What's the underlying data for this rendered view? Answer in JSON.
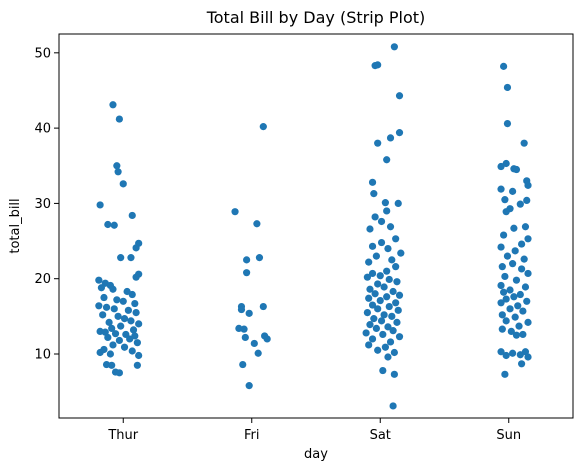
{
  "chart_data": {
    "type": "scatter",
    "title": "Total Bill by Day (Strip Plot)",
    "xlabel": "day",
    "ylabel": "total_bill",
    "categories": [
      "Thur",
      "Fri",
      "Sat",
      "Sun"
    ],
    "ylim": [
      1.5,
      52.5
    ],
    "yticks": [
      10,
      20,
      30,
      40,
      50
    ],
    "grid": false,
    "point_color": "#1f77b4",
    "series": [
      {
        "category": "Thur",
        "points": [
          {
            "offset": -0.08,
            "y": 43.1
          },
          {
            "offset": -0.03,
            "y": 41.2
          },
          {
            "offset": -0.05,
            "y": 35.0
          },
          {
            "offset": -0.04,
            "y": 34.2
          },
          {
            "offset": 0.0,
            "y": 32.6
          },
          {
            "offset": -0.18,
            "y": 29.8
          },
          {
            "offset": 0.07,
            "y": 28.4
          },
          {
            "offset": -0.12,
            "y": 27.2
          },
          {
            "offset": -0.07,
            "y": 27.1
          },
          {
            "offset": 0.12,
            "y": 24.7
          },
          {
            "offset": 0.1,
            "y": 24.1
          },
          {
            "offset": -0.02,
            "y": 22.8
          },
          {
            "offset": 0.06,
            "y": 22.8
          },
          {
            "offset": 0.12,
            "y": 20.6
          },
          {
            "offset": 0.1,
            "y": 20.2
          },
          {
            "offset": -0.19,
            "y": 19.8
          },
          {
            "offset": -0.14,
            "y": 19.4
          },
          {
            "offset": -0.1,
            "y": 19.1
          },
          {
            "offset": -0.17,
            "y": 18.8
          },
          {
            "offset": -0.08,
            "y": 18.6
          },
          {
            "offset": 0.03,
            "y": 18.3
          },
          {
            "offset": 0.07,
            "y": 17.9
          },
          {
            "offset": -0.15,
            "y": 17.5
          },
          {
            "offset": -0.05,
            "y": 17.2
          },
          {
            "offset": 0.0,
            "y": 17.0
          },
          {
            "offset": 0.09,
            "y": 16.7
          },
          {
            "offset": -0.19,
            "y": 16.4
          },
          {
            "offset": -0.13,
            "y": 16.2
          },
          {
            "offset": -0.07,
            "y": 16.0
          },
          {
            "offset": 0.04,
            "y": 15.8
          },
          {
            "offset": 0.1,
            "y": 15.5
          },
          {
            "offset": -0.16,
            "y": 15.2
          },
          {
            "offset": -0.04,
            "y": 15.0
          },
          {
            "offset": 0.01,
            "y": 14.7
          },
          {
            "offset": 0.06,
            "y": 14.4
          },
          {
            "offset": -0.11,
            "y": 14.2
          },
          {
            "offset": 0.12,
            "y": 14.0
          },
          {
            "offset": -0.02,
            "y": 13.7
          },
          {
            "offset": -0.09,
            "y": 13.4
          },
          {
            "offset": 0.08,
            "y": 13.2
          },
          {
            "offset": -0.18,
            "y": 13.0
          },
          {
            "offset": -0.14,
            "y": 12.9
          },
          {
            "offset": -0.06,
            "y": 12.7
          },
          {
            "offset": 0.02,
            "y": 12.6
          },
          {
            "offset": 0.09,
            "y": 12.4
          },
          {
            "offset": -0.12,
            "y": 12.2
          },
          {
            "offset": 0.05,
            "y": 12.0
          },
          {
            "offset": -0.03,
            "y": 11.8
          },
          {
            "offset": 0.11,
            "y": 11.5
          },
          {
            "offset": -0.08,
            "y": 11.2
          },
          {
            "offset": 0.01,
            "y": 10.9
          },
          {
            "offset": -0.15,
            "y": 10.6
          },
          {
            "offset": 0.07,
            "y": 10.4
          },
          {
            "offset": -0.18,
            "y": 10.2
          },
          {
            "offset": -0.1,
            "y": 10.0
          },
          {
            "offset": 0.12,
            "y": 9.8
          },
          {
            "offset": -0.13,
            "y": 8.6
          },
          {
            "offset": -0.09,
            "y": 8.5
          },
          {
            "offset": 0.11,
            "y": 8.5
          },
          {
            "offset": -0.06,
            "y": 7.6
          },
          {
            "offset": -0.03,
            "y": 7.5
          }
        ]
      },
      {
        "category": "Fri",
        "points": [
          {
            "offset": 0.09,
            "y": 40.2
          },
          {
            "offset": -0.13,
            "y": 28.9
          },
          {
            "offset": 0.04,
            "y": 27.3
          },
          {
            "offset": 0.06,
            "y": 22.8
          },
          {
            "offset": -0.04,
            "y": 22.5
          },
          {
            "offset": -0.04,
            "y": 20.8
          },
          {
            "offset": -0.08,
            "y": 16.3
          },
          {
            "offset": 0.09,
            "y": 16.3
          },
          {
            "offset": -0.08,
            "y": 15.9
          },
          {
            "offset": -0.02,
            "y": 15.4
          },
          {
            "offset": -0.1,
            "y": 13.4
          },
          {
            "offset": -0.06,
            "y": 13.3
          },
          {
            "offset": 0.1,
            "y": 12.4
          },
          {
            "offset": 0.12,
            "y": 12.0
          },
          {
            "offset": -0.05,
            "y": 12.2
          },
          {
            "offset": 0.02,
            "y": 11.4
          },
          {
            "offset": 0.05,
            "y": 10.1
          },
          {
            "offset": -0.07,
            "y": 8.6
          },
          {
            "offset": -0.02,
            "y": 5.8
          }
        ]
      },
      {
        "category": "Sat",
        "points": [
          {
            "offset": 0.11,
            "y": 50.8
          },
          {
            "offset": -0.04,
            "y": 48.3
          },
          {
            "offset": -0.02,
            "y": 48.4
          },
          {
            "offset": 0.15,
            "y": 44.3
          },
          {
            "offset": 0.15,
            "y": 39.4
          },
          {
            "offset": 0.08,
            "y": 38.7
          },
          {
            "offset": -0.02,
            "y": 38.0
          },
          {
            "offset": 0.05,
            "y": 35.8
          },
          {
            "offset": -0.06,
            "y": 32.8
          },
          {
            "offset": -0.05,
            "y": 31.3
          },
          {
            "offset": 0.04,
            "y": 30.1
          },
          {
            "offset": 0.14,
            "y": 30.0
          },
          {
            "offset": 0.05,
            "y": 29.0
          },
          {
            "offset": -0.04,
            "y": 28.2
          },
          {
            "offset": 0.01,
            "y": 27.6
          },
          {
            "offset": 0.08,
            "y": 26.9
          },
          {
            "offset": -0.08,
            "y": 26.6
          },
          {
            "offset": 0.12,
            "y": 25.3
          },
          {
            "offset": 0.01,
            "y": 24.8
          },
          {
            "offset": -0.06,
            "y": 24.3
          },
          {
            "offset": 0.06,
            "y": 24.0
          },
          {
            "offset": 0.16,
            "y": 23.4
          },
          {
            "offset": -0.03,
            "y": 23.0
          },
          {
            "offset": 0.09,
            "y": 22.5
          },
          {
            "offset": -0.09,
            "y": 22.2
          },
          {
            "offset": 0.12,
            "y": 21.6
          },
          {
            "offset": 0.05,
            "y": 21.0
          },
          {
            "offset": -0.06,
            "y": 20.7
          },
          {
            "offset": 0.0,
            "y": 20.4
          },
          {
            "offset": -0.1,
            "y": 20.2
          },
          {
            "offset": 0.07,
            "y": 19.9
          },
          {
            "offset": 0.13,
            "y": 19.6
          },
          {
            "offset": -0.02,
            "y": 19.3
          },
          {
            "offset": 0.03,
            "y": 18.9
          },
          {
            "offset": -0.08,
            "y": 18.6
          },
          {
            "offset": 0.1,
            "y": 18.3
          },
          {
            "offset": -0.04,
            "y": 18.0
          },
          {
            "offset": 0.15,
            "y": 17.8
          },
          {
            "offset": 0.05,
            "y": 17.6
          },
          {
            "offset": -0.09,
            "y": 17.4
          },
          {
            "offset": 0.0,
            "y": 17.1
          },
          {
            "offset": 0.12,
            "y": 16.8
          },
          {
            "offset": -0.06,
            "y": 16.5
          },
          {
            "offset": 0.07,
            "y": 16.3
          },
          {
            "offset": -0.02,
            "y": 16.0
          },
          {
            "offset": 0.14,
            "y": 15.8
          },
          {
            "offset": -0.1,
            "y": 15.5
          },
          {
            "offset": 0.03,
            "y": 15.2
          },
          {
            "offset": 0.09,
            "y": 15.0
          },
          {
            "offset": -0.05,
            "y": 14.7
          },
          {
            "offset": 0.01,
            "y": 14.4
          },
          {
            "offset": 0.13,
            "y": 14.2
          },
          {
            "offset": -0.08,
            "y": 13.9
          },
          {
            "offset": 0.06,
            "y": 13.6
          },
          {
            "offset": -0.03,
            "y": 13.4
          },
          {
            "offset": 0.1,
            "y": 13.1
          },
          {
            "offset": -0.11,
            "y": 12.8
          },
          {
            "offset": 0.02,
            "y": 12.6
          },
          {
            "offset": 0.15,
            "y": 12.3
          },
          {
            "offset": -0.06,
            "y": 12.0
          },
          {
            "offset": 0.08,
            "y": 11.6
          },
          {
            "offset": -0.09,
            "y": 11.2
          },
          {
            "offset": 0.04,
            "y": 10.9
          },
          {
            "offset": -0.02,
            "y": 10.5
          },
          {
            "offset": 0.11,
            "y": 10.2
          },
          {
            "offset": 0.06,
            "y": 9.6
          },
          {
            "offset": 0.11,
            "y": 7.3
          },
          {
            "offset": 0.02,
            "y": 7.8
          },
          {
            "offset": 0.1,
            "y": 3.1
          }
        ]
      },
      {
        "category": "Sun",
        "points": [
          {
            "offset": -0.04,
            "y": 48.2
          },
          {
            "offset": -0.01,
            "y": 45.4
          },
          {
            "offset": -0.01,
            "y": 40.6
          },
          {
            "offset": 0.12,
            "y": 38.0
          },
          {
            "offset": -0.02,
            "y": 35.3
          },
          {
            "offset": -0.06,
            "y": 34.9
          },
          {
            "offset": 0.04,
            "y": 34.6
          },
          {
            "offset": 0.06,
            "y": 34.5
          },
          {
            "offset": 0.14,
            "y": 33.0
          },
          {
            "offset": 0.15,
            "y": 32.4
          },
          {
            "offset": -0.06,
            "y": 31.9
          },
          {
            "offset": 0.03,
            "y": 31.6
          },
          {
            "offset": -0.03,
            "y": 30.5
          },
          {
            "offset": 0.14,
            "y": 30.4
          },
          {
            "offset": 0.09,
            "y": 29.9
          },
          {
            "offset": 0.01,
            "y": 29.3
          },
          {
            "offset": -0.02,
            "y": 28.9
          },
          {
            "offset": 0.13,
            "y": 26.9
          },
          {
            "offset": 0.04,
            "y": 26.7
          },
          {
            "offset": -0.04,
            "y": 25.8
          },
          {
            "offset": 0.15,
            "y": 25.3
          },
          {
            "offset": 0.1,
            "y": 24.6
          },
          {
            "offset": -0.06,
            "y": 24.2
          },
          {
            "offset": 0.05,
            "y": 23.7
          },
          {
            "offset": -0.01,
            "y": 23.0
          },
          {
            "offset": 0.12,
            "y": 22.6
          },
          {
            "offset": 0.03,
            "y": 22.0
          },
          {
            "offset": -0.05,
            "y": 21.6
          },
          {
            "offset": 0.1,
            "y": 21.3
          },
          {
            "offset": 0.15,
            "y": 20.7
          },
          {
            "offset": -0.03,
            "y": 20.3
          },
          {
            "offset": 0.06,
            "y": 19.8
          },
          {
            "offset": -0.06,
            "y": 19.1
          },
          {
            "offset": 0.13,
            "y": 18.9
          },
          {
            "offset": 0.01,
            "y": 18.5
          },
          {
            "offset": -0.04,
            "y": 18.2
          },
          {
            "offset": 0.09,
            "y": 17.9
          },
          {
            "offset": 0.04,
            "y": 17.6
          },
          {
            "offset": -0.02,
            "y": 17.3
          },
          {
            "offset": 0.14,
            "y": 17.0
          },
          {
            "offset": -0.06,
            "y": 16.8
          },
          {
            "offset": 0.07,
            "y": 16.4
          },
          {
            "offset": 0.01,
            "y": 16.0
          },
          {
            "offset": 0.11,
            "y": 15.7
          },
          {
            "offset": -0.05,
            "y": 15.2
          },
          {
            "offset": 0.05,
            "y": 14.9
          },
          {
            "offset": -0.02,
            "y": 14.4
          },
          {
            "offset": 0.15,
            "y": 14.2
          },
          {
            "offset": 0.08,
            "y": 13.7
          },
          {
            "offset": -0.05,
            "y": 13.3
          },
          {
            "offset": 0.02,
            "y": 13.0
          },
          {
            "offset": 0.11,
            "y": 12.6
          },
          {
            "offset": 0.06,
            "y": 12.5
          },
          {
            "offset": -0.06,
            "y": 10.3
          },
          {
            "offset": 0.03,
            "y": 10.1
          },
          {
            "offset": 0.13,
            "y": 10.3
          },
          {
            "offset": 0.15,
            "y": 9.6
          },
          {
            "offset": 0.09,
            "y": 9.9
          },
          {
            "offset": -0.02,
            "y": 9.8
          },
          {
            "offset": 0.1,
            "y": 8.7
          },
          {
            "offset": -0.03,
            "y": 7.3
          }
        ]
      }
    ]
  }
}
